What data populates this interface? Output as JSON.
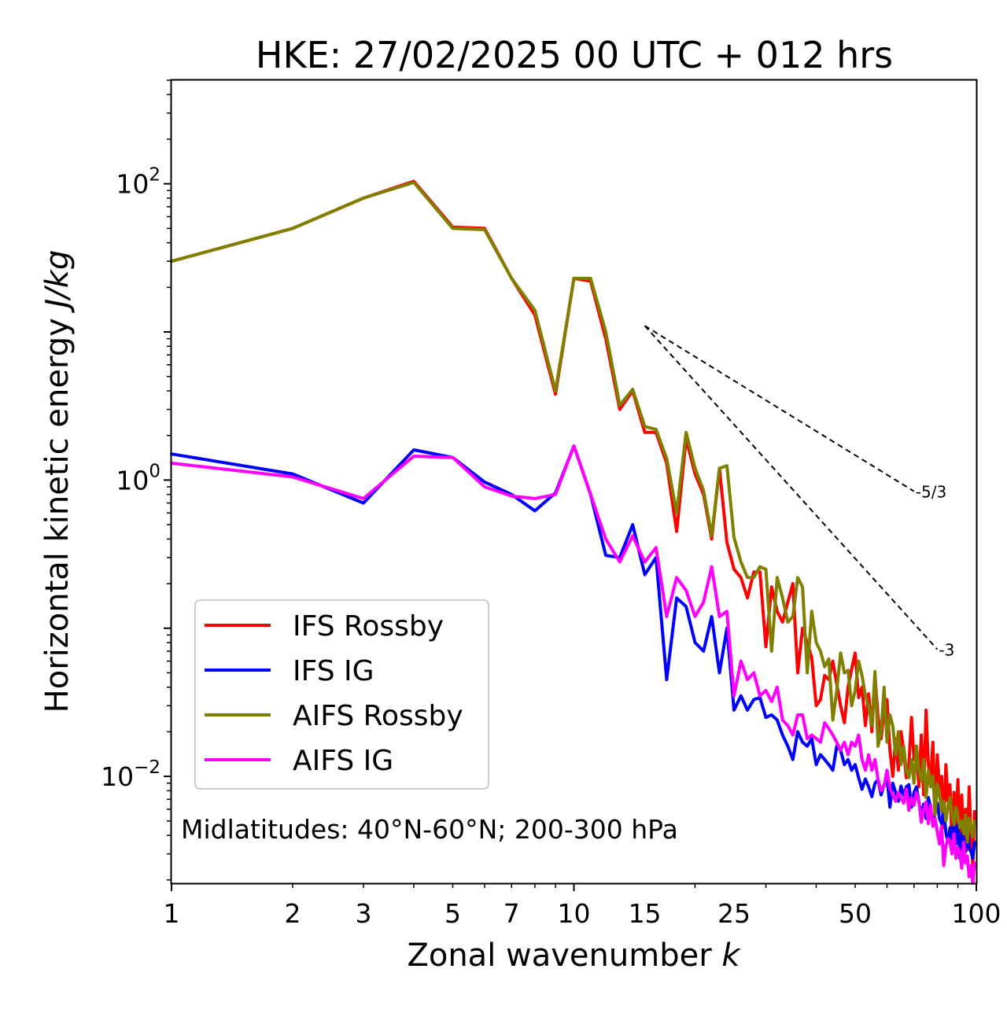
{
  "chart_data": {
    "type": "line",
    "title": "HKE: 27/02/2025 00 UTC + 012 hrs",
    "xlabel_main": "Zonal wavenumber ",
    "xlabel_var": "k",
    "ylabel_main": "Horizontal kinetic energy ",
    "ylabel_var": "J/kg",
    "x_scale": "log",
    "y_scale": "log",
    "xlim": [
      1,
      100
    ],
    "ylim": [
      0.0019,
      500
    ],
    "x_ticks": [
      1,
      2,
      3,
      5,
      7,
      10,
      15,
      25,
      50,
      100
    ],
    "x_tick_labels": [
      "1",
      "2",
      "3",
      "5",
      "7",
      "10",
      "15",
      "25",
      "50",
      "100"
    ],
    "y_ticks": [
      {
        "value": 100,
        "base": "10",
        "exp": "2"
      },
      {
        "value": 1,
        "base": "10",
        "exp": "0"
      },
      {
        "value": 0.01,
        "base": "10",
        "exp": "−2"
      }
    ],
    "grid": false,
    "legend_position": "lower-left",
    "annotation": "Midlatitudes: 40°N-60°N; 200-300 hPa",
    "reference_lines": [
      {
        "label": "-5/3",
        "x": [
          15,
          70
        ],
        "y": [
          11,
          0.84
        ]
      },
      {
        "label": "-3",
        "x": [
          15,
          80
        ],
        "y": [
          11,
          0.072
        ]
      }
    ],
    "series": [
      {
        "name": "IFS Rossby",
        "color": "#ff0000",
        "y": [
          30,
          50,
          80,
          104,
          51,
          50,
          23,
          13,
          3.8,
          23,
          22,
          9,
          3,
          4,
          2.1,
          2.1,
          1.3,
          0.45,
          1.9,
          1.1,
          0.8,
          0.4,
          1.2,
          0.38,
          0.25,
          0.22,
          0.16,
          0.24,
          0.24,
          0.075,
          0.19,
          0.13,
          0.11,
          0.15,
          0.2,
          0.05,
          0.1,
          0.08,
          0.063,
          0.03,
          0.033,
          0.048,
          0.045,
          0.06,
          0.042,
          0.03,
          0.023,
          0.04,
          0.053,
          0.068,
          0.034,
          0.04,
          0.022,
          0.036,
          0.02,
          0.048,
          0.025,
          0.018,
          0.028,
          0.033,
          0.015,
          0.01,
          0.018,
          0.011,
          0.02,
          0.015,
          0.0098,
          0.012,
          0.025,
          0.013,
          0.016,
          0.0085,
          0.019,
          0.0075,
          0.028,
          0.012,
          0.0098,
          0.017,
          0.0057,
          0.014,
          0.0082,
          0.01,
          0.0045,
          0.012,
          0.0068,
          0.0088,
          0.0035,
          0.0078,
          0.0045,
          0.0095,
          0.0038,
          0.0075,
          0.003,
          0.006,
          0.0032,
          0.0085,
          0.004,
          0.0025,
          0.0058
        ]
      },
      {
        "name": "IFS IG",
        "color": "#0000ff",
        "y": [
          1.5,
          1.1,
          0.7,
          1.6,
          1.42,
          0.97,
          0.8,
          0.62,
          0.82,
          1.7,
          0.8,
          0.31,
          0.3,
          0.5,
          0.23,
          0.3,
          0.045,
          0.16,
          0.14,
          0.08,
          0.07,
          0.12,
          0.05,
          0.1,
          0.028,
          0.035,
          0.028,
          0.033,
          0.034,
          0.025,
          0.026,
          0.024,
          0.019,
          0.016,
          0.013,
          0.02,
          0.017,
          0.016,
          0.018,
          0.012,
          0.014,
          0.013,
          0.012,
          0.011,
          0.016,
          0.015,
          0.012,
          0.013,
          0.011,
          0.012,
          0.0098,
          0.0082,
          0.0096,
          0.0085,
          0.0073,
          0.009,
          0.0095,
          0.0075,
          0.0088,
          0.0098,
          0.0062,
          0.009,
          0.0078,
          0.0068,
          0.0086,
          0.0074,
          0.0085,
          0.0088,
          0.0062,
          0.0078,
          0.0085,
          0.0067,
          0.0055,
          0.0065,
          0.0052,
          0.0072,
          0.0062,
          0.0048,
          0.0057,
          0.0066,
          0.0052,
          0.0048,
          0.0061,
          0.0042,
          0.0036,
          0.0045,
          0.0038,
          0.0052,
          0.0035,
          0.0047,
          0.0028,
          0.0041,
          0.0036,
          0.0031,
          0.0048,
          0.0033,
          0.0031,
          0.0028,
          0.0036
        ]
      },
      {
        "name": "AIFS Rossby",
        "color": "#808000",
        "y": [
          30,
          50,
          80,
          102,
          50,
          49,
          23,
          14,
          4,
          23,
          23,
          10,
          3.2,
          4.1,
          2.3,
          2.2,
          1.4,
          0.6,
          2.1,
          1.2,
          0.85,
          0.42,
          1.2,
          1.25,
          0.41,
          0.28,
          0.22,
          0.22,
          0.26,
          0.25,
          0.07,
          0.22,
          0.16,
          0.11,
          0.12,
          0.22,
          0.19,
          0.05,
          0.13,
          0.08,
          0.07,
          0.055,
          0.062,
          0.024,
          0.038,
          0.068,
          0.05,
          0.052,
          0.03,
          0.038,
          0.06,
          0.048,
          0.035,
          0.03,
          0.022,
          0.051,
          0.016,
          0.02,
          0.04,
          0.017,
          0.026,
          0.022,
          0.014,
          0.02,
          0.012,
          0.016,
          0.011,
          0.0098,
          0.013,
          0.009,
          0.016,
          0.011,
          0.0093,
          0.013,
          0.0072,
          0.011,
          0.0085,
          0.01,
          0.0055,
          0.0089,
          0.0075,
          0.0058,
          0.0068,
          0.005,
          0.0062,
          0.0072,
          0.0055,
          0.0047,
          0.0062,
          0.0054,
          0.0045,
          0.005,
          0.0041,
          0.0055,
          0.0036,
          0.0052,
          0.0046,
          0.0039,
          0.005
        ]
      },
      {
        "name": "AIFS IG",
        "color": "#ff00ff",
        "y": [
          1.3,
          1.05,
          0.75,
          1.45,
          1.42,
          0.9,
          0.78,
          0.75,
          0.8,
          1.7,
          0.8,
          0.4,
          0.28,
          0.42,
          0.28,
          0.35,
          0.12,
          0.22,
          0.18,
          0.12,
          0.15,
          0.26,
          0.12,
          0.13,
          0.035,
          0.06,
          0.045,
          0.05,
          0.035,
          0.038,
          0.032,
          0.04,
          0.024,
          0.022,
          0.019,
          0.026,
          0.026,
          0.018,
          0.019,
          0.018,
          0.017,
          0.023,
          0.021,
          0.019,
          0.017,
          0.015,
          0.017,
          0.014,
          0.017,
          0.016,
          0.019,
          0.013,
          0.011,
          0.014,
          0.011,
          0.013,
          0.0095,
          0.008,
          0.0086,
          0.011,
          0.0083,
          0.0075,
          0.0068,
          0.0078,
          0.0071,
          0.0066,
          0.0082,
          0.0059,
          0.0072,
          0.0064,
          0.0078,
          0.0068,
          0.0049,
          0.0059,
          0.0067,
          0.0048,
          0.0064,
          0.0046,
          0.0052,
          0.0042,
          0.0035,
          0.0046,
          0.0025,
          0.0034,
          0.0038,
          0.0036,
          0.003,
          0.0041,
          0.0028,
          0.0033,
          0.0031,
          0.0024,
          0.0036,
          0.0026,
          0.0029,
          0.0021,
          0.0025,
          0.0019,
          0.0026
        ]
      }
    ]
  }
}
